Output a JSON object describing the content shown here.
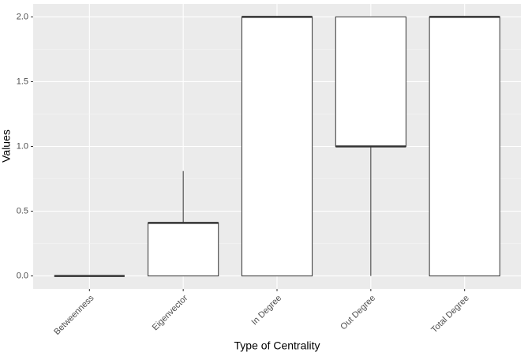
{
  "chart_data": {
    "type": "box",
    "x_label": "Type of Centrality",
    "y_label": "Values",
    "categories": [
      "Betweenness",
      "Eigenvector",
      "In Degree",
      "Out Degree",
      "Total Degree"
    ],
    "min": [
      0,
      0,
      0,
      0,
      0
    ],
    "q1": [
      0,
      0,
      0,
      1,
      0
    ],
    "median": [
      0,
      0.41,
      2,
      1,
      2
    ],
    "q3": [
      0,
      0.41,
      2,
      2,
      2
    ],
    "max": [
      0,
      0.81,
      2,
      2,
      2
    ],
    "color": "#ffffff",
    "line_color": "#333333",
    "ylim": [
      -0.1,
      2.1
    ],
    "yticks": [
      {
        "value": 0,
        "label": "0.0"
      },
      {
        "value": 0.5,
        "label": "0.5"
      },
      {
        "value": 1,
        "label": "1.0"
      },
      {
        "value": 1.5,
        "label": "1.5"
      },
      {
        "value": 2,
        "label": "2.0"
      }
    ],
    "grid": true
  }
}
